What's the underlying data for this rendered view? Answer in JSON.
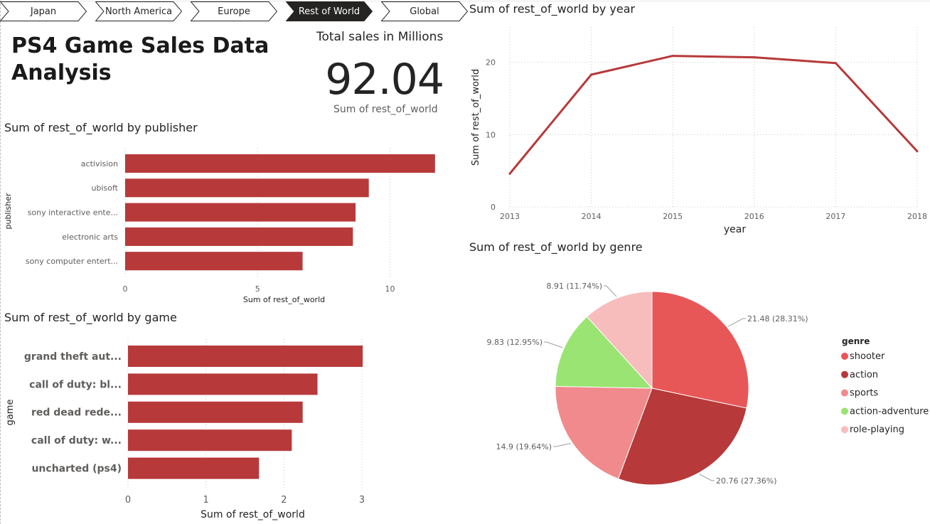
{
  "tabs": [
    {
      "label": "Japan",
      "active": false
    },
    {
      "label": "North America",
      "active": false
    },
    {
      "label": "Europe",
      "active": false
    },
    {
      "label": "Rest of World",
      "active": true
    },
    {
      "label": "Global",
      "active": false
    }
  ],
  "report_title": "PS4 Game Sales Data Analysis",
  "card": {
    "title": "Total sales in Millions",
    "value": "92.04",
    "subtitle": "Sum of rest_of_world"
  },
  "colors": {
    "bar": "#b7393a",
    "tab_active": "#252423",
    "shooter": "#e85757",
    "action": "#b7393a",
    "sports": "#f18a8c",
    "action-adventure": "#99e472",
    "role-playing": "#f7bcbc"
  },
  "chart_data": [
    {
      "type": "bar",
      "title": "Sum of rest_of_world by publisher",
      "xlabel": "Sum of rest_of_world",
      "ylabel": "publisher",
      "categories": [
        "activision",
        "ubisoft",
        "sony interactive ente...",
        "electronic arts",
        "sony computer entert..."
      ],
      "values": [
        11.7,
        9.2,
        8.7,
        8.6,
        6.7
      ],
      "xlim": [
        0,
        12
      ],
      "xticks": [
        0,
        5,
        10
      ],
      "grid": true
    },
    {
      "type": "bar",
      "title": "Sum of rest_of_world by game",
      "xlabel": "Sum of rest_of_world",
      "ylabel": "game",
      "categories": [
        "grand theft aut...",
        "call of duty: bl...",
        "red dead rede...",
        "call of duty: w...",
        "uncharted (ps4)"
      ],
      "values": [
        3.01,
        2.43,
        2.24,
        2.1,
        1.68
      ],
      "xlim": [
        0,
        3.2
      ],
      "xticks": [
        0,
        1,
        2,
        3
      ],
      "grid": true
    },
    {
      "type": "line",
      "title": "Sum of rest_of_world by year",
      "xlabel": "year",
      "ylabel": "Sum of rest_of_world",
      "x": [
        2013,
        2014,
        2015,
        2016,
        2017,
        2018
      ],
      "values": [
        4.6,
        18.3,
        20.9,
        20.7,
        19.9,
        7.7
      ],
      "ylim": [
        0,
        22
      ],
      "yticks": [
        0,
        10,
        20
      ],
      "grid": true
    },
    {
      "type": "pie",
      "title": "Sum of rest_of_world by genre",
      "legend_title": "genre",
      "legend_position": "right",
      "slices": [
        {
          "name": "shooter",
          "value": 21.48,
          "label": "21.48 (28.31%)"
        },
        {
          "name": "action",
          "value": 20.76,
          "label": "20.76 (27.36%)"
        },
        {
          "name": "sports",
          "value": 14.9,
          "label": "14.9 (19.64%)"
        },
        {
          "name": "action-adventure",
          "value": 9.83,
          "label": "9.83 (12.95%)"
        },
        {
          "name": "role-playing",
          "value": 8.91,
          "label": "8.91 (11.74%)"
        }
      ]
    }
  ]
}
